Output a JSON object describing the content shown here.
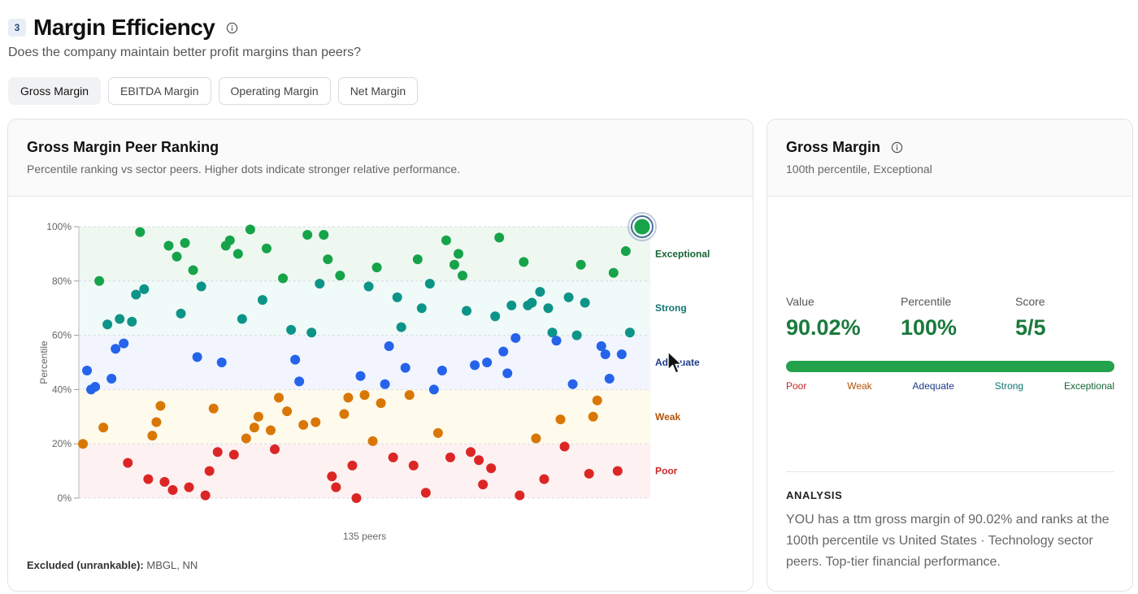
{
  "section": {
    "number": "3",
    "title": "Margin Efficiency",
    "subtitle": "Does the company maintain better profit margins than peers?",
    "info_icon": "info-icon"
  },
  "tabs": [
    {
      "label": "Gross Margin",
      "active": true
    },
    {
      "label": "EBITDA Margin",
      "active": false
    },
    {
      "label": "Operating Margin",
      "active": false
    },
    {
      "label": "Net Margin",
      "active": false
    }
  ],
  "chart_card": {
    "title": "Gross Margin Peer Ranking",
    "subtitle": "Percentile ranking vs sector peers. Higher dots indicate stronger relative performance.",
    "excluded_label": "Excluded (unrankable):",
    "excluded_value": "MBGL, NN"
  },
  "chart_data": {
    "type": "scatter",
    "title": "Gross Margin Peer Ranking",
    "xlabel": "135 peers",
    "ylabel": "Percentile",
    "ylim": [
      0,
      100
    ],
    "yticks": [
      "0%",
      "20%",
      "40%",
      "60%",
      "80%",
      "100%"
    ],
    "grid": true,
    "bands": [
      {
        "name": "Poor",
        "from": 0,
        "to": 20,
        "color": "#c62828",
        "fill": "#fdecec"
      },
      {
        "name": "Weak",
        "from": 20,
        "to": 40,
        "color": "#b45309",
        "fill": "#fef8e6"
      },
      {
        "name": "Adequate",
        "from": 40,
        "to": 60,
        "color": "#1e3a8a",
        "fill": "#edf2fd"
      },
      {
        "name": "Strong",
        "from": 60,
        "to": 80,
        "color": "#0f766e",
        "fill": "#ebf8f5"
      },
      {
        "name": "Exceptional",
        "from": 80,
        "to": 100,
        "color": "#166534",
        "fill": "#e8f6ec"
      }
    ],
    "point_colors": {
      "Poor": "#dc2626",
      "Weak": "#d97706",
      "Adequate": "#2563eb",
      "Strong": "#0d9488",
      "Exceptional": "#16a34a"
    },
    "highlight": {
      "x": 139,
      "y": 100,
      "color": "#16a34a",
      "ring": "#4b6f9c"
    },
    "xlim": [
      1,
      141
    ],
    "points": [
      [
        2,
        20
      ],
      [
        3,
        47
      ],
      [
        4,
        40
      ],
      [
        5,
        41
      ],
      [
        6,
        80
      ],
      [
        7,
        26
      ],
      [
        8,
        64
      ],
      [
        9,
        44
      ],
      [
        10,
        55
      ],
      [
        11,
        66
      ],
      [
        12,
        57
      ],
      [
        13,
        13
      ],
      [
        14,
        65
      ],
      [
        15,
        75
      ],
      [
        16,
        98
      ],
      [
        17,
        77
      ],
      [
        18,
        7
      ],
      [
        19,
        23
      ],
      [
        20,
        28
      ],
      [
        21,
        34
      ],
      [
        22,
        6
      ],
      [
        23,
        93
      ],
      [
        24,
        3
      ],
      [
        25,
        89
      ],
      [
        26,
        68
      ],
      [
        27,
        94
      ],
      [
        28,
        4
      ],
      [
        29,
        84
      ],
      [
        30,
        52
      ],
      [
        31,
        78
      ],
      [
        32,
        1
      ],
      [
        33,
        10
      ],
      [
        34,
        33
      ],
      [
        35,
        17
      ],
      [
        36,
        50
      ],
      [
        37,
        93
      ],
      [
        38,
        95
      ],
      [
        39,
        16
      ],
      [
        40,
        90
      ],
      [
        41,
        66
      ],
      [
        42,
        22
      ],
      [
        43,
        99
      ],
      [
        44,
        26
      ],
      [
        45,
        30
      ],
      [
        46,
        73
      ],
      [
        47,
        92
      ],
      [
        48,
        25
      ],
      [
        49,
        18
      ],
      [
        50,
        37
      ],
      [
        51,
        81
      ],
      [
        52,
        32
      ],
      [
        53,
        62
      ],
      [
        54,
        51
      ],
      [
        55,
        43
      ],
      [
        56,
        27
      ],
      [
        57,
        97
      ],
      [
        58,
        61
      ],
      [
        59,
        28
      ],
      [
        60,
        79
      ],
      [
        61,
        97
      ],
      [
        62,
        88
      ],
      [
        63,
        8
      ],
      [
        64,
        4
      ],
      [
        65,
        82
      ],
      [
        66,
        31
      ],
      [
        67,
        37
      ],
      [
        68,
        12
      ],
      [
        69,
        0
      ],
      [
        70,
        45
      ],
      [
        71,
        38
      ],
      [
        72,
        78
      ],
      [
        73,
        21
      ],
      [
        74,
        85
      ],
      [
        75,
        35
      ],
      [
        76,
        42
      ],
      [
        77,
        56
      ],
      [
        78,
        15
      ],
      [
        79,
        74
      ],
      [
        80,
        63
      ],
      [
        81,
        48
      ],
      [
        82,
        38
      ],
      [
        83,
        12
      ],
      [
        84,
        88
      ],
      [
        85,
        70
      ],
      [
        86,
        2
      ],
      [
        87,
        79
      ],
      [
        88,
        40
      ],
      [
        89,
        24
      ],
      [
        90,
        47
      ],
      [
        91,
        95
      ],
      [
        92,
        15
      ],
      [
        93,
        86
      ],
      [
        94,
        90
      ],
      [
        95,
        82
      ],
      [
        96,
        69
      ],
      [
        97,
        17
      ],
      [
        98,
        49
      ],
      [
        99,
        14
      ],
      [
        100,
        5
      ],
      [
        101,
        50
      ],
      [
        102,
        11
      ],
      [
        103,
        67
      ],
      [
        104,
        96
      ],
      [
        105,
        54
      ],
      [
        106,
        46
      ],
      [
        107,
        71
      ],
      [
        108,
        59
      ],
      [
        109,
        1
      ],
      [
        110,
        87
      ],
      [
        111,
        71
      ],
      [
        112,
        72
      ],
      [
        113,
        22
      ],
      [
        114,
        76
      ],
      [
        115,
        7
      ],
      [
        116,
        70
      ],
      [
        117,
        61
      ],
      [
        118,
        58
      ],
      [
        119,
        29
      ],
      [
        120,
        19
      ],
      [
        121,
        74
      ],
      [
        122,
        42
      ],
      [
        123,
        60
      ],
      [
        124,
        86
      ],
      [
        125,
        72
      ],
      [
        126,
        9
      ],
      [
        127,
        30
      ],
      [
        128,
        36
      ],
      [
        129,
        56
      ],
      [
        130,
        53
      ],
      [
        131,
        44
      ],
      [
        132,
        83
      ],
      [
        133,
        10
      ],
      [
        134,
        53
      ],
      [
        135,
        91
      ],
      [
        136,
        61
      ]
    ]
  },
  "side_card": {
    "title": "Gross Margin",
    "subtitle": "100th percentile, Exceptional",
    "metrics": [
      {
        "label": "Value",
        "value": "90.02%"
      },
      {
        "label": "Percentile",
        "value": "100%"
      },
      {
        "label": "Score",
        "value": "5/5"
      }
    ],
    "score_fraction": 1.0,
    "scale_labels": [
      "Poor",
      "Weak",
      "Adequate",
      "Strong",
      "Exceptional"
    ],
    "analysis_heading": "ANALYSIS",
    "analysis_text": "YOU has a ttm gross margin of 90.02% and ranks at the 100th percentile vs United States · Technology sector peers. Top-tier financial performance."
  }
}
